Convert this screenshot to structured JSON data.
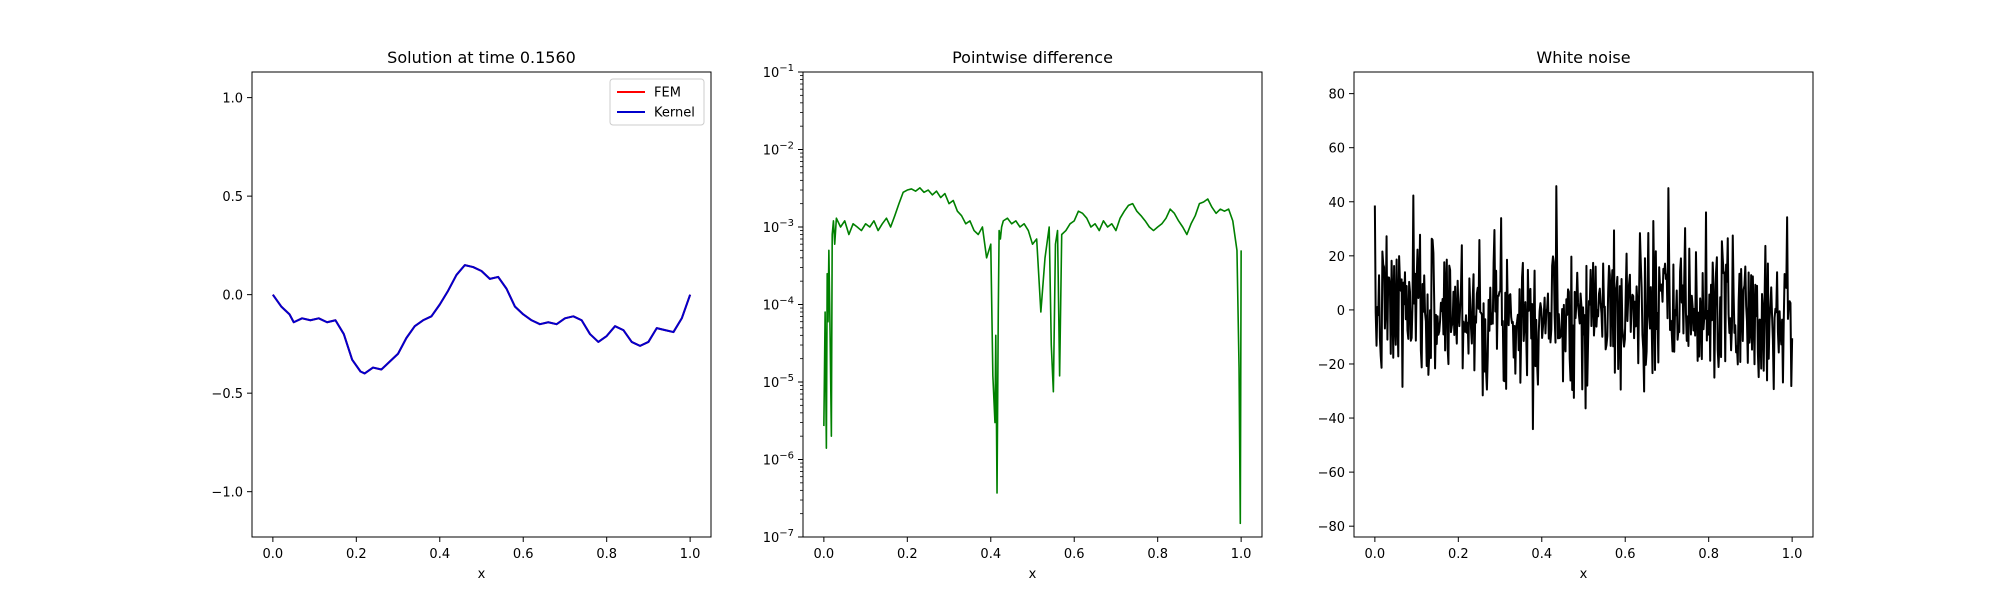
{
  "chart_data": [
    {
      "type": "line",
      "title": "Solution at time 0.1560",
      "xlabel": "x",
      "ylabel": "",
      "xlim": [
        -0.05,
        1.05
      ],
      "ylim": [
        -1.23,
        1.13
      ],
      "xticks": [
        0.0,
        0.2,
        0.4,
        0.6,
        0.8,
        1.0
      ],
      "xtick_labels": [
        "0.0",
        "0.2",
        "0.4",
        "0.6",
        "0.8",
        "1.0"
      ],
      "yticks": [
        -1.0,
        -0.5,
        0.0,
        0.5,
        1.0
      ],
      "ytick_labels": [
        "−1.0",
        "−0.5",
        "0.0",
        "0.5",
        "1.0"
      ],
      "legend": {
        "placement": "top-right",
        "entries": [
          "FEM",
          "Kernel"
        ]
      },
      "series": [
        {
          "name": "FEM",
          "color": "#ff0000",
          "x": [
            0.0,
            0.02,
            0.04,
            0.05,
            0.07,
            0.09,
            0.11,
            0.13,
            0.15,
            0.17,
            0.19,
            0.21,
            0.22,
            0.24,
            0.26,
            0.28,
            0.3,
            0.32,
            0.34,
            0.36,
            0.38,
            0.4,
            0.42,
            0.44,
            0.46,
            0.48,
            0.5,
            0.52,
            0.54,
            0.56,
            0.58,
            0.6,
            0.62,
            0.64,
            0.66,
            0.68,
            0.7,
            0.72,
            0.74,
            0.76,
            0.78,
            0.8,
            0.82,
            0.84,
            0.86,
            0.88,
            0.9,
            0.92,
            0.94,
            0.96,
            0.98,
            1.0
          ],
          "y": [
            0.0,
            -0.06,
            -0.1,
            -0.14,
            -0.12,
            -0.13,
            -0.12,
            -0.14,
            -0.13,
            -0.2,
            -0.33,
            -0.39,
            -0.4,
            -0.37,
            -0.38,
            -0.34,
            -0.3,
            -0.22,
            -0.16,
            -0.13,
            -0.11,
            -0.05,
            0.02,
            0.1,
            0.15,
            0.14,
            0.12,
            0.08,
            0.09,
            0.03,
            -0.06,
            -0.1,
            -0.13,
            -0.15,
            -0.14,
            -0.15,
            -0.12,
            -0.11,
            -0.13,
            -0.2,
            -0.24,
            -0.21,
            -0.16,
            -0.18,
            -0.24,
            -0.26,
            -0.24,
            -0.17,
            -0.18,
            -0.19,
            -0.12,
            0.0
          ]
        },
        {
          "name": "Kernel",
          "color": "#0000cc",
          "x": [
            0.0,
            0.02,
            0.04,
            0.05,
            0.07,
            0.09,
            0.11,
            0.13,
            0.15,
            0.17,
            0.19,
            0.21,
            0.22,
            0.24,
            0.26,
            0.28,
            0.3,
            0.32,
            0.34,
            0.36,
            0.38,
            0.4,
            0.42,
            0.44,
            0.46,
            0.48,
            0.5,
            0.52,
            0.54,
            0.56,
            0.58,
            0.6,
            0.62,
            0.64,
            0.66,
            0.68,
            0.7,
            0.72,
            0.74,
            0.76,
            0.78,
            0.8,
            0.82,
            0.84,
            0.86,
            0.88,
            0.9,
            0.92,
            0.94,
            0.96,
            0.98,
            1.0
          ],
          "y": [
            0.0,
            -0.06,
            -0.1,
            -0.14,
            -0.12,
            -0.13,
            -0.12,
            -0.14,
            -0.13,
            -0.2,
            -0.33,
            -0.39,
            -0.4,
            -0.37,
            -0.38,
            -0.34,
            -0.3,
            -0.22,
            -0.16,
            -0.13,
            -0.11,
            -0.05,
            0.02,
            0.1,
            0.15,
            0.14,
            0.12,
            0.08,
            0.09,
            0.03,
            -0.06,
            -0.1,
            -0.13,
            -0.15,
            -0.14,
            -0.15,
            -0.12,
            -0.11,
            -0.13,
            -0.2,
            -0.24,
            -0.21,
            -0.16,
            -0.18,
            -0.24,
            -0.26,
            -0.24,
            -0.17,
            -0.18,
            -0.19,
            -0.12,
            0.0
          ]
        }
      ]
    },
    {
      "type": "line",
      "title": "Pointwise difference",
      "xlabel": "x",
      "ylabel": "",
      "yscale": "log",
      "xlim": [
        -0.05,
        1.05
      ],
      "ylim": [
        1e-07,
        0.1
      ],
      "xticks": [
        0.0,
        0.2,
        0.4,
        0.6,
        0.8,
        1.0
      ],
      "xtick_labels": [
        "0.0",
        "0.2",
        "0.4",
        "0.6",
        "0.8",
        "1.0"
      ],
      "ytick_exponents": [
        -7,
        -6,
        -5,
        -4,
        -3,
        -2,
        -1
      ],
      "ytick_base": "10",
      "series": [
        {
          "color": "#008000",
          "x": [
            0.0,
            0.003,
            0.006,
            0.008,
            0.01,
            0.012,
            0.015,
            0.018,
            0.02,
            0.023,
            0.026,
            0.03,
            0.04,
            0.05,
            0.06,
            0.07,
            0.08,
            0.09,
            0.1,
            0.11,
            0.12,
            0.13,
            0.14,
            0.15,
            0.16,
            0.17,
            0.18,
            0.19,
            0.2,
            0.21,
            0.22,
            0.23,
            0.24,
            0.25,
            0.26,
            0.27,
            0.28,
            0.29,
            0.3,
            0.31,
            0.32,
            0.33,
            0.34,
            0.35,
            0.36,
            0.37,
            0.38,
            0.39,
            0.4,
            0.405,
            0.41,
            0.412,
            0.415,
            0.418,
            0.42,
            0.423,
            0.426,
            0.43,
            0.44,
            0.45,
            0.46,
            0.47,
            0.48,
            0.49,
            0.5,
            0.51,
            0.52,
            0.53,
            0.54,
            0.545,
            0.55,
            0.555,
            0.56,
            0.565,
            0.57,
            0.58,
            0.59,
            0.6,
            0.61,
            0.62,
            0.63,
            0.64,
            0.65,
            0.66,
            0.67,
            0.68,
            0.69,
            0.7,
            0.71,
            0.72,
            0.73,
            0.74,
            0.75,
            0.76,
            0.77,
            0.78,
            0.79,
            0.8,
            0.81,
            0.82,
            0.83,
            0.84,
            0.85,
            0.86,
            0.87,
            0.88,
            0.89,
            0.9,
            0.91,
            0.92,
            0.93,
            0.94,
            0.95,
            0.96,
            0.97,
            0.98,
            0.99,
            0.995,
            0.998,
            1.0
          ],
          "y": [
            2.7e-06,
            8e-05,
            1.4e-06,
            0.00025,
            6e-05,
            0.0005,
            4e-05,
            2e-06,
            0.0008,
            0.0012,
            0.0006,
            0.0013,
            0.001,
            0.0012,
            0.0008,
            0.0011,
            0.001,
            0.0009,
            0.0011,
            0.001,
            0.0012,
            0.0009,
            0.0011,
            0.0013,
            0.001,
            0.0014,
            0.002,
            0.0028,
            0.003,
            0.0031,
            0.0029,
            0.0032,
            0.0028,
            0.003,
            0.0026,
            0.0029,
            0.0024,
            0.0027,
            0.002,
            0.0022,
            0.0016,
            0.0014,
            0.0011,
            0.0012,
            0.0009,
            0.0008,
            0.001,
            0.0004,
            0.0006,
            1.2e-05,
            3e-06,
            4e-05,
            3.7e-07,
            8e-05,
            0.0009,
            0.0007,
            0.001,
            0.0012,
            0.0013,
            0.0011,
            0.0012,
            0.001,
            0.0011,
            0.0009,
            0.0006,
            0.0007,
            8e-05,
            0.0004,
            0.001,
            3e-05,
            7.5e-06,
            0.0006,
            0.0009,
            1.2e-05,
            0.0008,
            0.0009,
            0.0011,
            0.0012,
            0.0016,
            0.0015,
            0.0013,
            0.001,
            0.0011,
            0.0009,
            0.0012,
            0.001,
            0.0011,
            0.0009,
            0.0013,
            0.0016,
            0.0019,
            0.002,
            0.0016,
            0.0014,
            0.0012,
            0.001,
            0.0009,
            0.001,
            0.0011,
            0.0013,
            0.0017,
            0.0015,
            0.0012,
            0.001,
            0.0008,
            0.0011,
            0.0014,
            0.002,
            0.0021,
            0.0023,
            0.0018,
            0.0015,
            0.0017,
            0.0016,
            0.0017,
            0.0012,
            0.0005,
            1.5e-05,
            1.5e-07,
            0.0005
          ]
        }
      ]
    },
    {
      "type": "line",
      "title": "White noise",
      "xlabel": "x",
      "ylabel": "",
      "xlim": [
        -0.05,
        1.05
      ],
      "ylim": [
        -84,
        88
      ],
      "xticks": [
        0.0,
        0.2,
        0.4,
        0.6,
        0.8,
        1.0
      ],
      "xtick_labels": [
        "0.0",
        "0.2",
        "0.4",
        "0.6",
        "0.8",
        "1.0"
      ],
      "yticks": [
        -80,
        -60,
        -40,
        -20,
        0,
        20,
        40,
        60,
        80
      ],
      "ytick_labels": [
        "−80",
        "−60",
        "−40",
        "−20",
        "0",
        "20",
        "40",
        "60",
        "80"
      ],
      "noise": {
        "amplitude_std": 14,
        "samples": 500,
        "seed": 7
      },
      "series": [
        {
          "color": "#000000"
        }
      ]
    }
  ]
}
